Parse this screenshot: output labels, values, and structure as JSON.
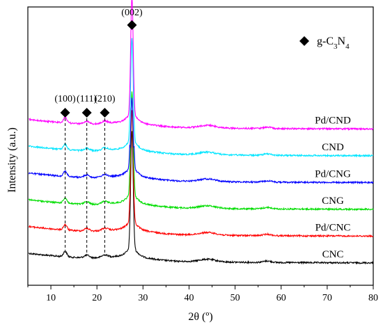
{
  "chart_data": {
    "type": "line",
    "xlabel": "2θ (º)",
    "ylabel": "Intensity (a.u.)",
    "xlim": [
      5,
      80
    ],
    "x_ticks": [
      10,
      20,
      30,
      40,
      50,
      60,
      70,
      80
    ],
    "y_ticks_shown": false,
    "grid": false,
    "legend": {
      "marker": "diamond",
      "label_base": "g-C",
      "sub1": "3",
      "label_mid": "N",
      "sub2": "4",
      "placement": "top-right"
    },
    "peak_markers": [
      {
        "label": "(100)",
        "x": 13.1
      },
      {
        "label": "(111)",
        "x": 17.8
      },
      {
        "label": "(210)",
        "x": 21.7
      },
      {
        "label": "(002)",
        "x": 27.6
      }
    ],
    "series": [
      {
        "name": "Pd/CND",
        "color": "#ff00ff",
        "offset": 5,
        "peak": 1.0
      },
      {
        "name": "CND",
        "color": "#00e5ff",
        "offset": 4,
        "peak": 0.88
      },
      {
        "name": "Pd/CNG",
        "color": "#0000ff",
        "offset": 3,
        "peak": 0.62
      },
      {
        "name": "CNG",
        "color": "#00dd00",
        "offset": 2,
        "peak": 0.88
      },
      {
        "name": "Pd/CNC",
        "color": "#ff0000",
        "offset": 1,
        "peak": 0.95
      },
      {
        "name": "CNC",
        "color": "#000000",
        "offset": 0,
        "peak": 1.0
      }
    ]
  }
}
